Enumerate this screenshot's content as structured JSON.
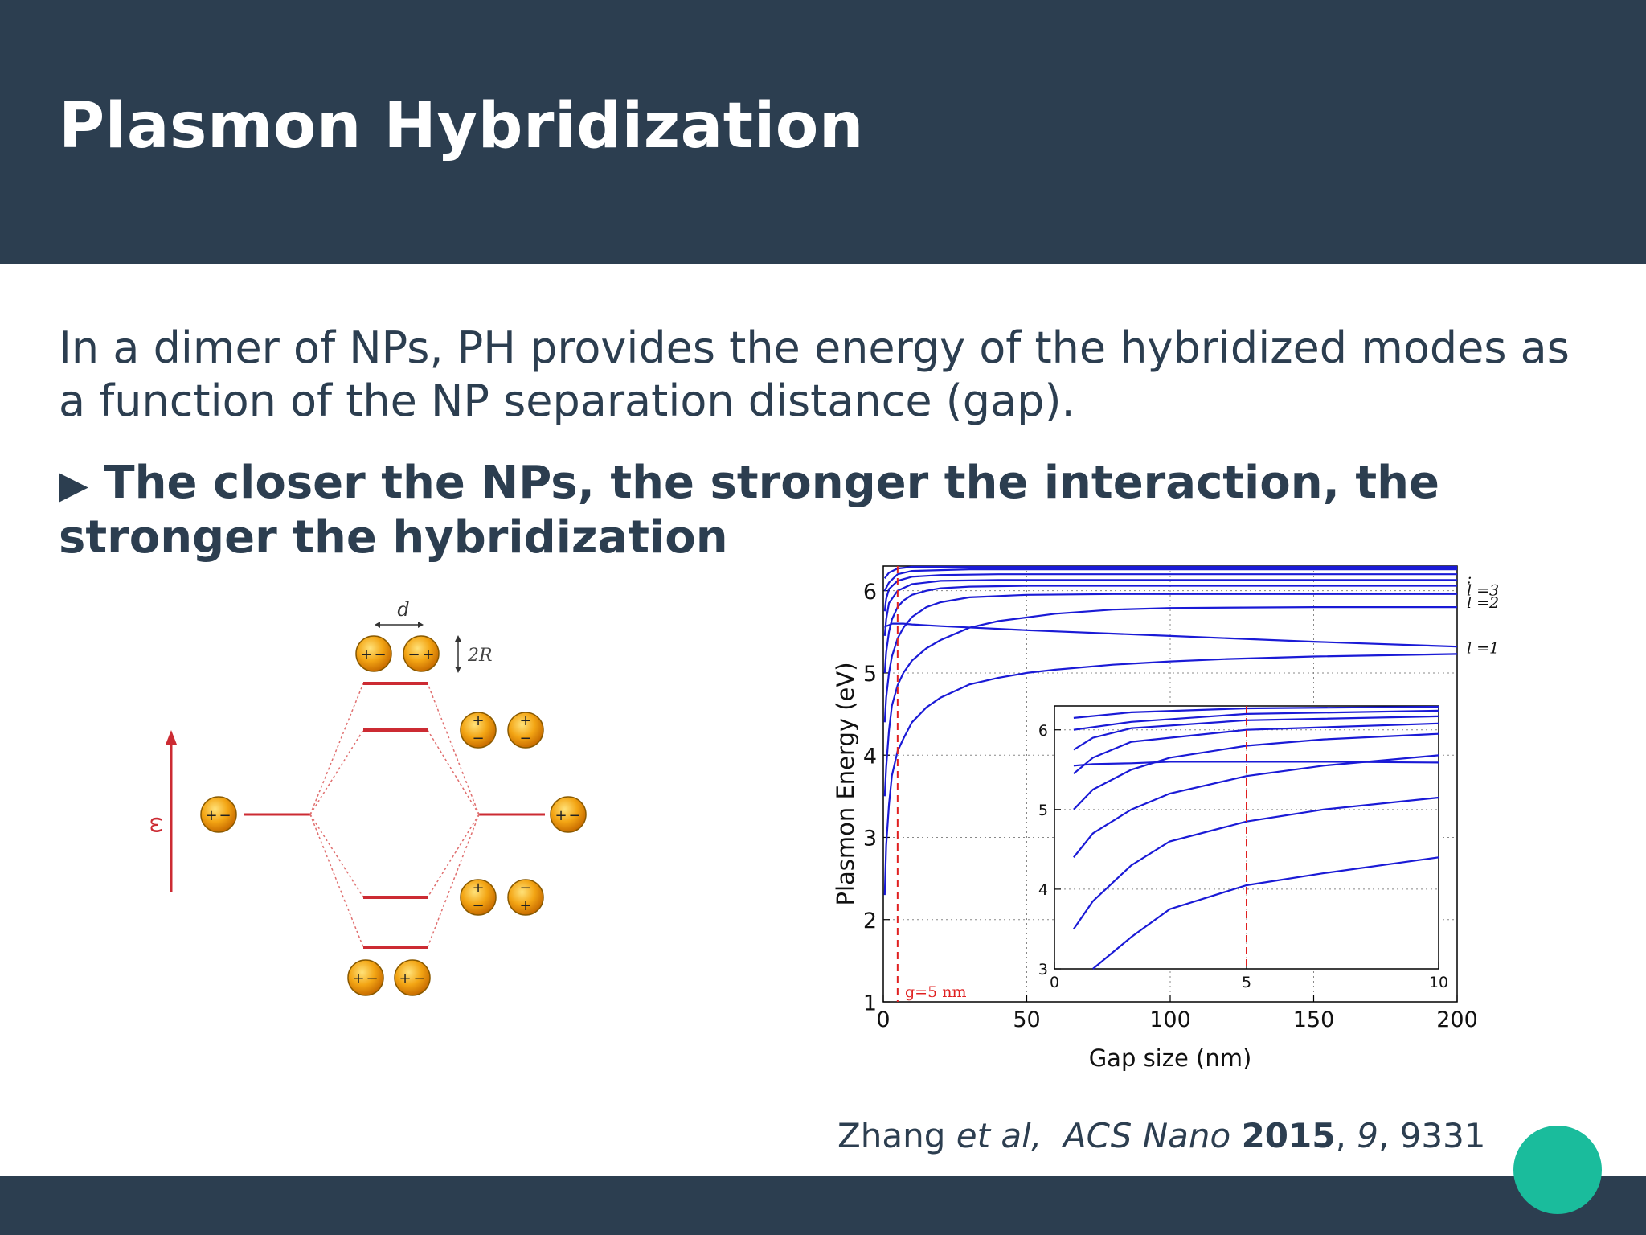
{
  "slide": {
    "title": "Plasmon Hybridization",
    "body_text": "In a dimer of NPs, PH provides the energy of the hybridized modes as a function of the NP separation distance (gap).",
    "bullet_arrow": "▶",
    "bullet_text": "The closer the NPs, the stronger the interaction, the stronger the hybridization",
    "citation": {
      "author": "Zhang ",
      "etal": "et al,",
      "journal": "ACS Nano",
      "year": "2015",
      "sep1": ", ",
      "volume": "9",
      "pages": ", 9331"
    }
  },
  "diagram": {
    "omega_label": "ω",
    "d_label": "d",
    "radius_label": "2R",
    "plus": "+",
    "minus": "−"
  },
  "chart_data": {
    "type": "line",
    "xlabel": "Gap size (nm)",
    "ylabel": "Plasmon Energy (eV)",
    "xlim": [
      0,
      200
    ],
    "ylim": [
      1,
      6.3
    ],
    "xticks": [
      "0",
      "50",
      "100",
      "150",
      "200"
    ],
    "yticks": [
      "1",
      "2",
      "3",
      "4",
      "5",
      "6"
    ],
    "grid": true,
    "annotation": "g=5 nm",
    "marker_x": 5,
    "mode_labels": [
      {
        "text": ":",
        "y": 6.15
      },
      {
        "text": "l =3",
        "y": 6.0
      },
      {
        "text": "l =2",
        "y": 5.85
      },
      {
        "text": "l =1",
        "y": 5.3
      }
    ],
    "inset": {
      "xlim": [
        0,
        10
      ],
      "ylim": [
        3,
        6.3
      ],
      "xticks": [
        "0",
        "5",
        "10"
      ],
      "yticks": [
        "3",
        "4",
        "5",
        "6"
      ]
    },
    "series": [
      {
        "x": [
          0.5,
          1,
          2,
          3,
          5,
          7,
          10,
          15,
          20,
          30,
          40,
          50,
          60,
          80,
          100,
          120,
          150,
          200
        ],
        "y": [
          2.3,
          2.9,
          3.4,
          3.75,
          4.05,
          4.2,
          4.4,
          4.58,
          4.7,
          4.86,
          4.94,
          5.0,
          5.04,
          5.1,
          5.14,
          5.17,
          5.2,
          5.23
        ]
      },
      {
        "x": [
          0.5,
          1,
          2,
          3,
          5,
          7,
          10,
          15,
          20,
          30,
          40,
          60,
          80,
          100,
          150,
          200
        ],
        "y": [
          3.5,
          3.85,
          4.3,
          4.6,
          4.85,
          5.0,
          5.15,
          5.3,
          5.4,
          5.55,
          5.63,
          5.72,
          5.77,
          5.79,
          5.8,
          5.8
        ]
      },
      {
        "x": [
          0.5,
          1,
          2,
          3,
          5,
          7,
          10,
          15,
          20,
          30,
          50,
          80,
          120,
          200
        ],
        "y": [
          4.4,
          4.7,
          5.0,
          5.2,
          5.42,
          5.55,
          5.68,
          5.8,
          5.86,
          5.92,
          5.95,
          5.96,
          5.96,
          5.96
        ]
      },
      {
        "x": [
          0.5,
          1,
          2,
          3,
          5,
          7,
          10,
          15,
          20,
          30,
          50,
          100,
          200
        ],
        "y": [
          5.0,
          5.25,
          5.5,
          5.65,
          5.8,
          5.88,
          5.95,
          6.0,
          6.03,
          6.05,
          6.06,
          6.06,
          6.06
        ]
      },
      {
        "x": [
          0.5,
          1,
          2,
          5,
          10,
          20,
          40,
          80,
          200
        ],
        "y": [
          5.45,
          5.65,
          5.85,
          6.0,
          6.08,
          6.12,
          6.13,
          6.13,
          6.13
        ]
      },
      {
        "x": [
          0.5,
          1,
          2,
          5,
          10,
          20,
          40,
          100,
          200
        ],
        "y": [
          5.75,
          5.9,
          6.02,
          6.12,
          6.17,
          6.19,
          6.2,
          6.2,
          6.2
        ]
      },
      {
        "x": [
          0.5,
          1,
          2,
          3,
          5,
          7,
          10,
          20,
          50,
          100,
          150,
          200
        ],
        "y": [
          5.55,
          5.57,
          5.58,
          5.6,
          5.6,
          5.6,
          5.59,
          5.57,
          5.52,
          5.45,
          5.38,
          5.32
        ]
      },
      {
        "x": [
          0.5,
          2,
          5,
          10,
          30,
          100,
          200
        ],
        "y": [
          6.0,
          6.1,
          6.2,
          6.24,
          6.26,
          6.26,
          6.26
        ]
      },
      {
        "x": [
          0.5,
          2,
          5,
          10,
          30,
          100,
          200
        ],
        "y": [
          6.15,
          6.22,
          6.27,
          6.29,
          6.29,
          6.29,
          6.29
        ]
      }
    ]
  }
}
